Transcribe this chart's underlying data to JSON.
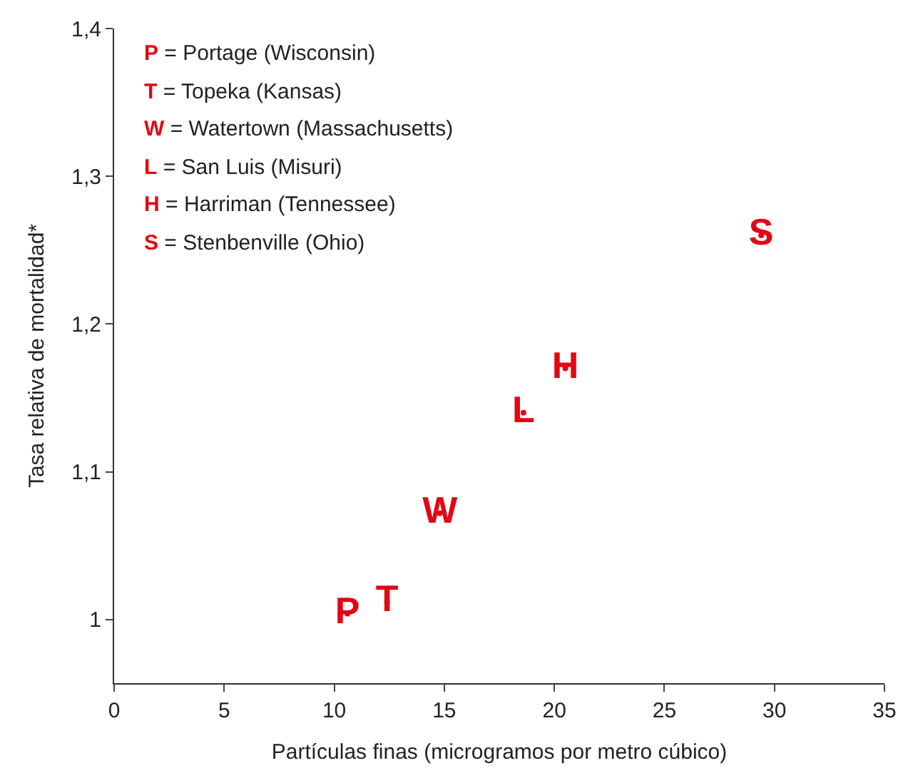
{
  "chart_data": {
    "type": "scatter",
    "xlabel": "Partículas finas (microgramos por metro cúbico)",
    "ylabel": "Tasa relativa de mortalidad*",
    "x": [
      10.6,
      12.4,
      14.8,
      18.6,
      20.5,
      29.4
    ],
    "values": [
      1.004,
      1.012,
      1.072,
      1.14,
      1.17,
      1.26
    ],
    "value_labels": [
      "P",
      "T",
      "W",
      "L",
      "H",
      "S"
    ],
    "color": "#e30613",
    "marker": "circle",
    "xlim": [
      0,
      35
    ],
    "xticks": [
      0,
      5,
      10,
      15,
      20,
      25,
      30,
      35
    ],
    "ylim": [
      0.957,
      1.4
    ],
    "yticks": [
      {
        "value": 1,
        "label": "1"
      },
      {
        "value": 1.1,
        "label": "1,1"
      },
      {
        "value": 1.2,
        "label": "1,2"
      },
      {
        "value": 1.3,
        "label": "1,3"
      },
      {
        "value": 1.4,
        "label": "1,4"
      }
    ],
    "annotations": [
      "P = Portage (Wisconsin)",
      "T = Topeka (Kansas)",
      "W = Watertown (Massachusetts)",
      "L = San Luis (Misuri)",
      "H = Harriman (Tennessee)",
      "S = Stenbenville (Ohio)"
    ]
  }
}
